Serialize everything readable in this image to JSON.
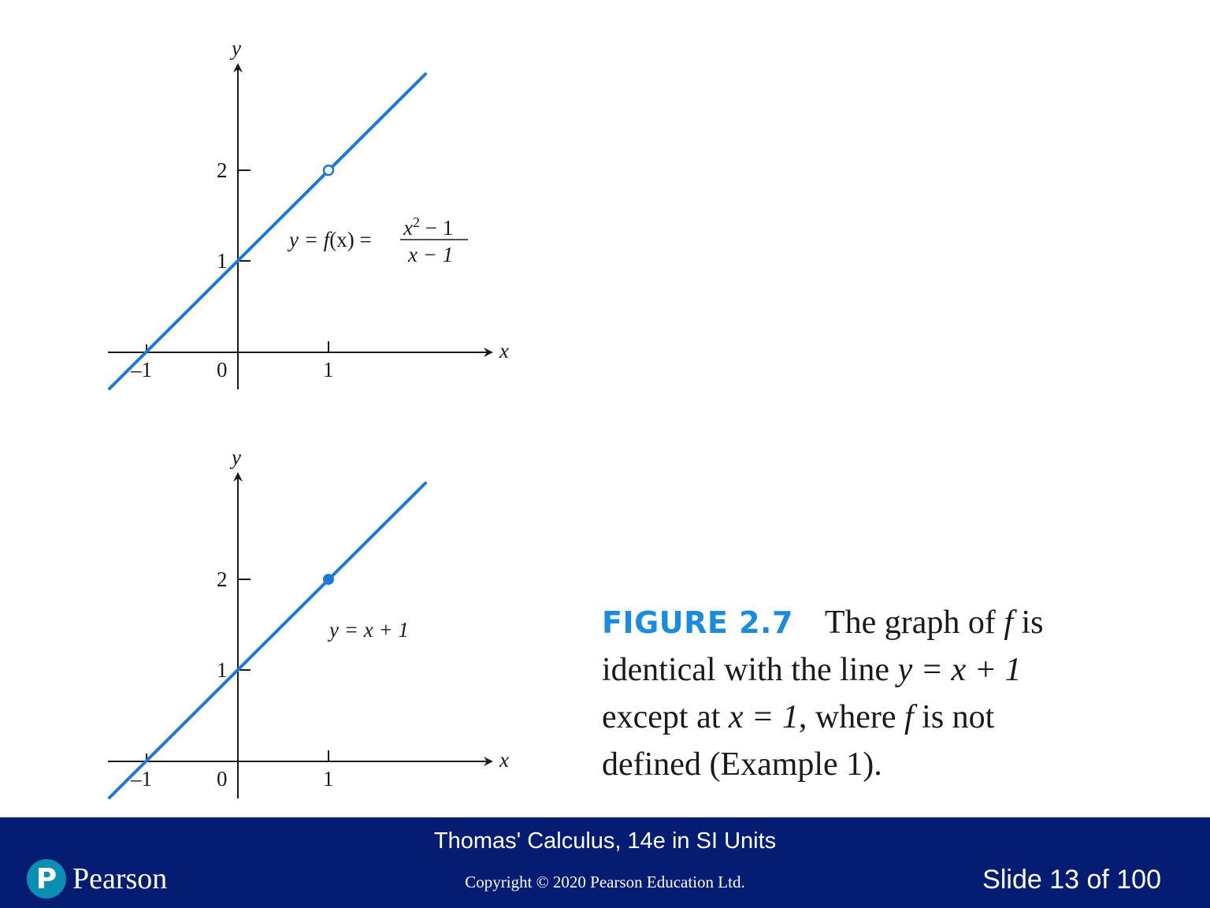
{
  "graph_top": {
    "axis_x_label": "x",
    "axis_y_label": "y",
    "tick_x_labels": [
      "–1",
      "0",
      "1"
    ],
    "tick_y_labels": [
      "1",
      "2"
    ],
    "equation": {
      "lhs": "y = ",
      "fn": "f",
      "arg": "(x) = ",
      "num_base": "x",
      "num_exp": "2",
      "num_rest": " − 1",
      "den": "x − 1"
    },
    "point_style": "open",
    "line_color": "#1a7ad6"
  },
  "graph_bottom": {
    "axis_x_label": "x",
    "axis_y_label": "y",
    "tick_x_labels": [
      "–1",
      "0",
      "1"
    ],
    "tick_y_labels": [
      "1",
      "2"
    ],
    "equation_text": "y = x + 1",
    "point_style": "filled",
    "line_color": "#1a7ad6"
  },
  "caption": {
    "figure_label": "FIGURE 2.7",
    "figure_label_color": "#1a8ce0",
    "line1_a": "The graph of ",
    "line1_f": "f",
    "line1_b": " is",
    "line2_a": "identical with the line ",
    "line2_eq": "y = x + 1",
    "line3_a": "except at ",
    "line3_eq": "x = 1",
    "line3_b": ", where ",
    "line3_f": "f",
    "line3_c": " is not",
    "line4": "defined (Example 1)."
  },
  "footer": {
    "book_title": "Thomas' Calculus, 14e in SI Units",
    "copyright": "Copyright © 2020 Pearson Education Ltd.",
    "slide_number": "Slide 13 of 100",
    "logo_letter": "P",
    "logo_text": "Pearson",
    "background_color": "#041d73"
  }
}
